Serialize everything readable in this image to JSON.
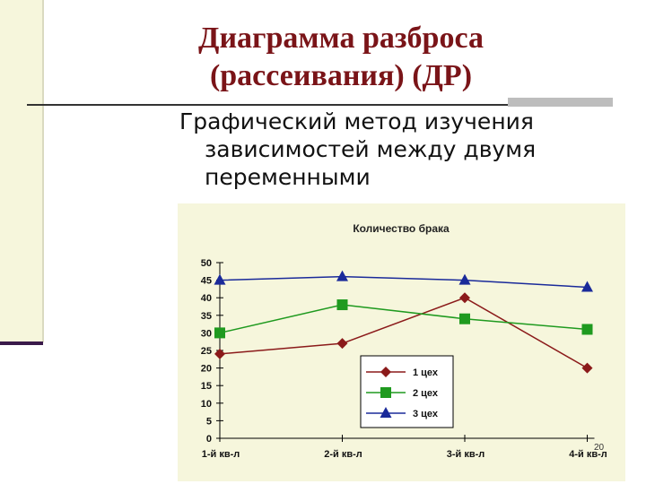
{
  "slide": {
    "title_lines": [
      "Диаграмма разброса",
      "(рассеивания) (ДР)"
    ],
    "subtitle_lines": [
      "Графический метод изучения",
      "зависимостей между двумя",
      "переменными"
    ],
    "page_number": "20"
  },
  "colors": {
    "title": "#7a1418",
    "panel_bg": "#f6f6dc",
    "series_1": "#8b1a1a",
    "series_2": "#1f9a1f",
    "series_3": "#1a2a9a"
  },
  "chart_data": {
    "type": "line",
    "title": "Количество брака",
    "categories": [
      "1-й кв-л",
      "2-й кв-л",
      "3-й кв-л",
      "4-й кв-л"
    ],
    "ylim": [
      0,
      50
    ],
    "yticks": [
      "0",
      "5",
      "10",
      "15",
      "20",
      "25",
      "30",
      "35",
      "40",
      "45",
      "50"
    ],
    "series": [
      {
        "name": "1 цех",
        "marker": "diamond",
        "color": "#8b1a1a",
        "values": [
          24,
          27,
          40,
          20
        ]
      },
      {
        "name": "2 цех",
        "marker": "square",
        "color": "#1f9a1f",
        "values": [
          30,
          38,
          34,
          31
        ]
      },
      {
        "name": "3 цех",
        "marker": "triangle",
        "color": "#1a2a9a",
        "values": [
          45,
          46,
          45,
          43
        ]
      }
    ],
    "legend": "inside-bottom-right",
    "grid": false
  }
}
